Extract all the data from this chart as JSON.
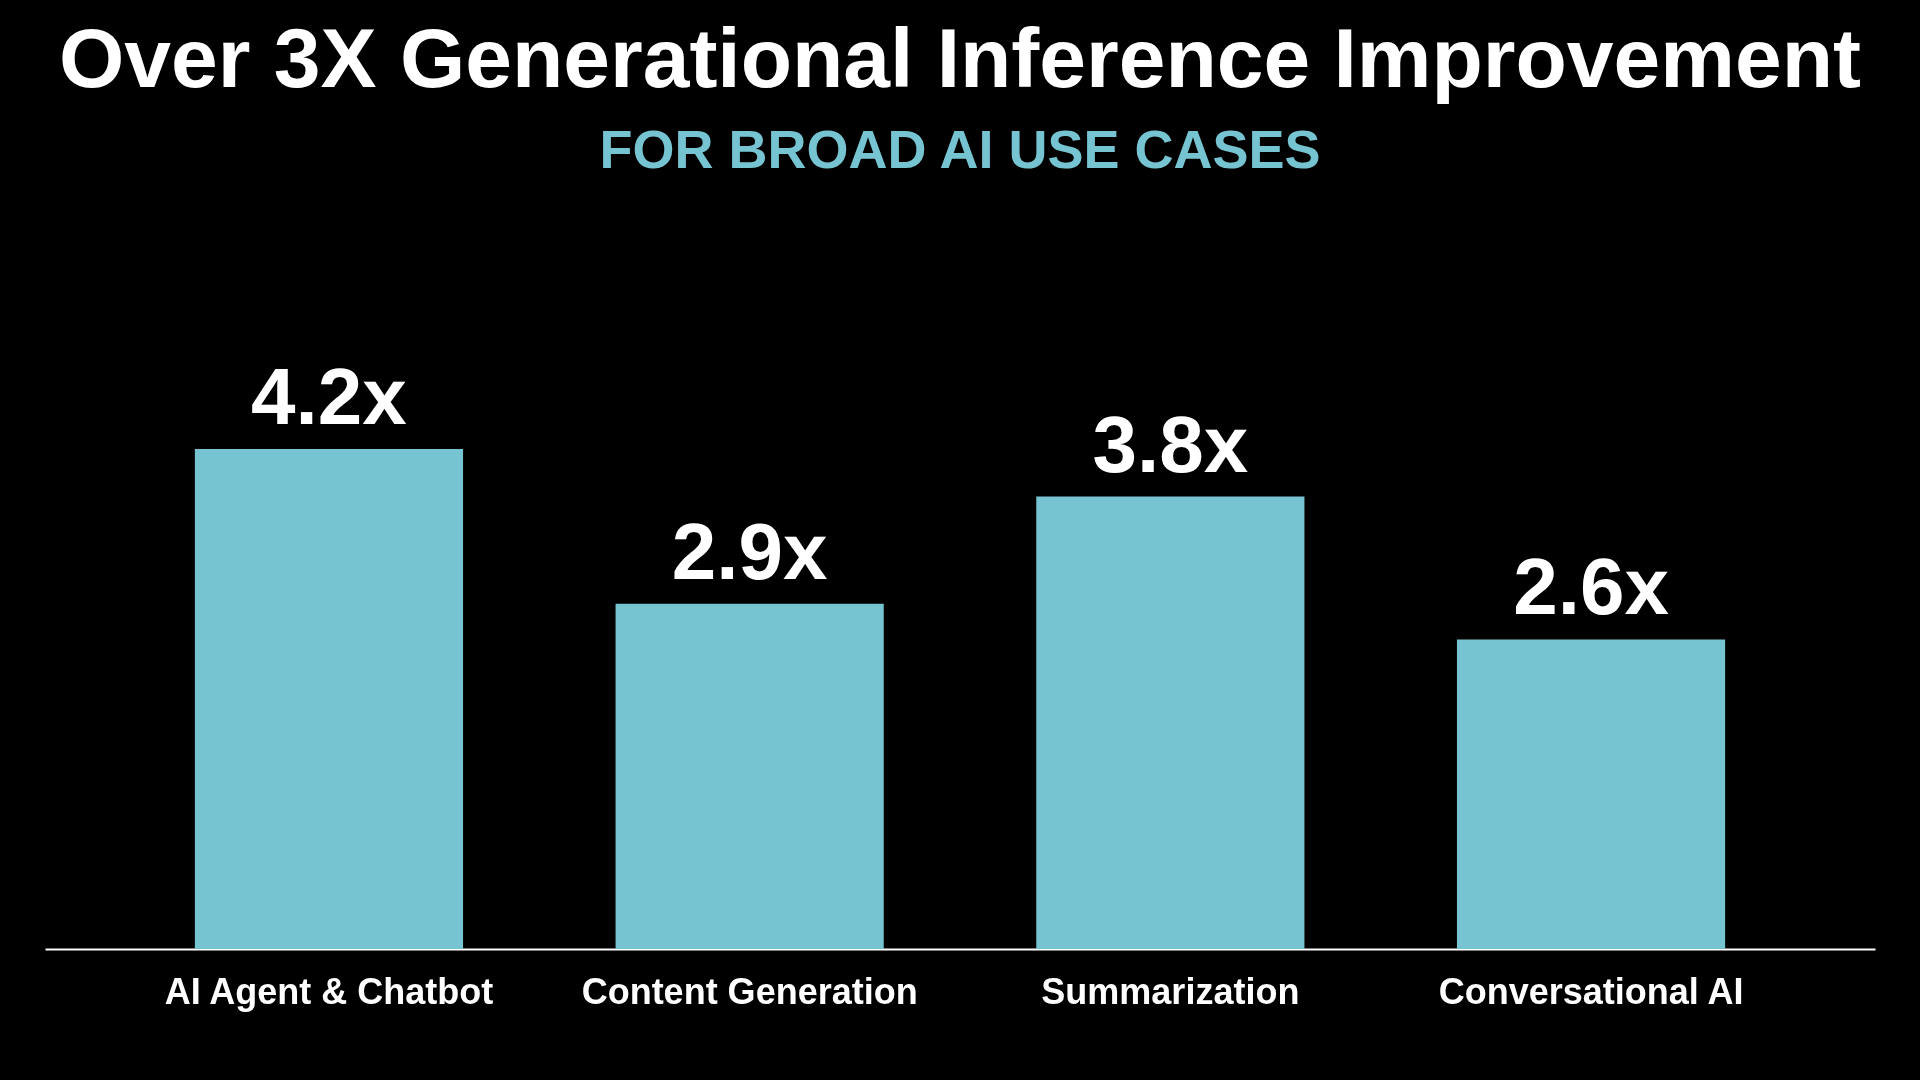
{
  "chart_data": {
    "type": "bar",
    "title": "Over 3X Generational Inference Improvement",
    "subtitle": "FOR BROAD AI USE CASES",
    "categories": [
      "AI Agent & Chatbot",
      "Content Generation",
      "Summarization",
      "Conversational AI"
    ],
    "values": [
      4.2,
      2.9,
      3.8,
      2.6
    ],
    "value_labels": [
      "4.2x",
      "2.9x",
      "3.8x",
      "2.6x"
    ],
    "color": "#76c4d1",
    "grid": false
  }
}
